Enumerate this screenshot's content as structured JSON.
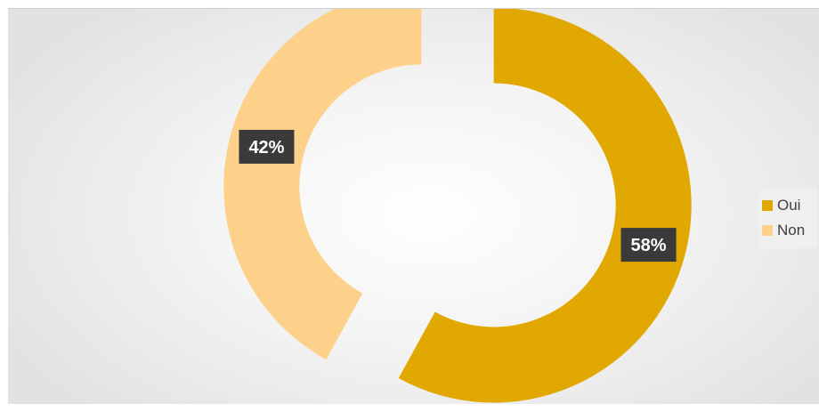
{
  "chart_data": {
    "type": "pie",
    "variant": "donut",
    "title": "",
    "slices": [
      {
        "label": "Oui",
        "value": 58,
        "display": "58%",
        "color": "#E0A800"
      },
      {
        "label": "Non",
        "value": 42,
        "display": "42%",
        "color": "#FDD18A"
      }
    ],
    "legend_position": "right",
    "data_label_style": {
      "background": "#3a3a3a",
      "text_color": "#ffffff"
    }
  }
}
